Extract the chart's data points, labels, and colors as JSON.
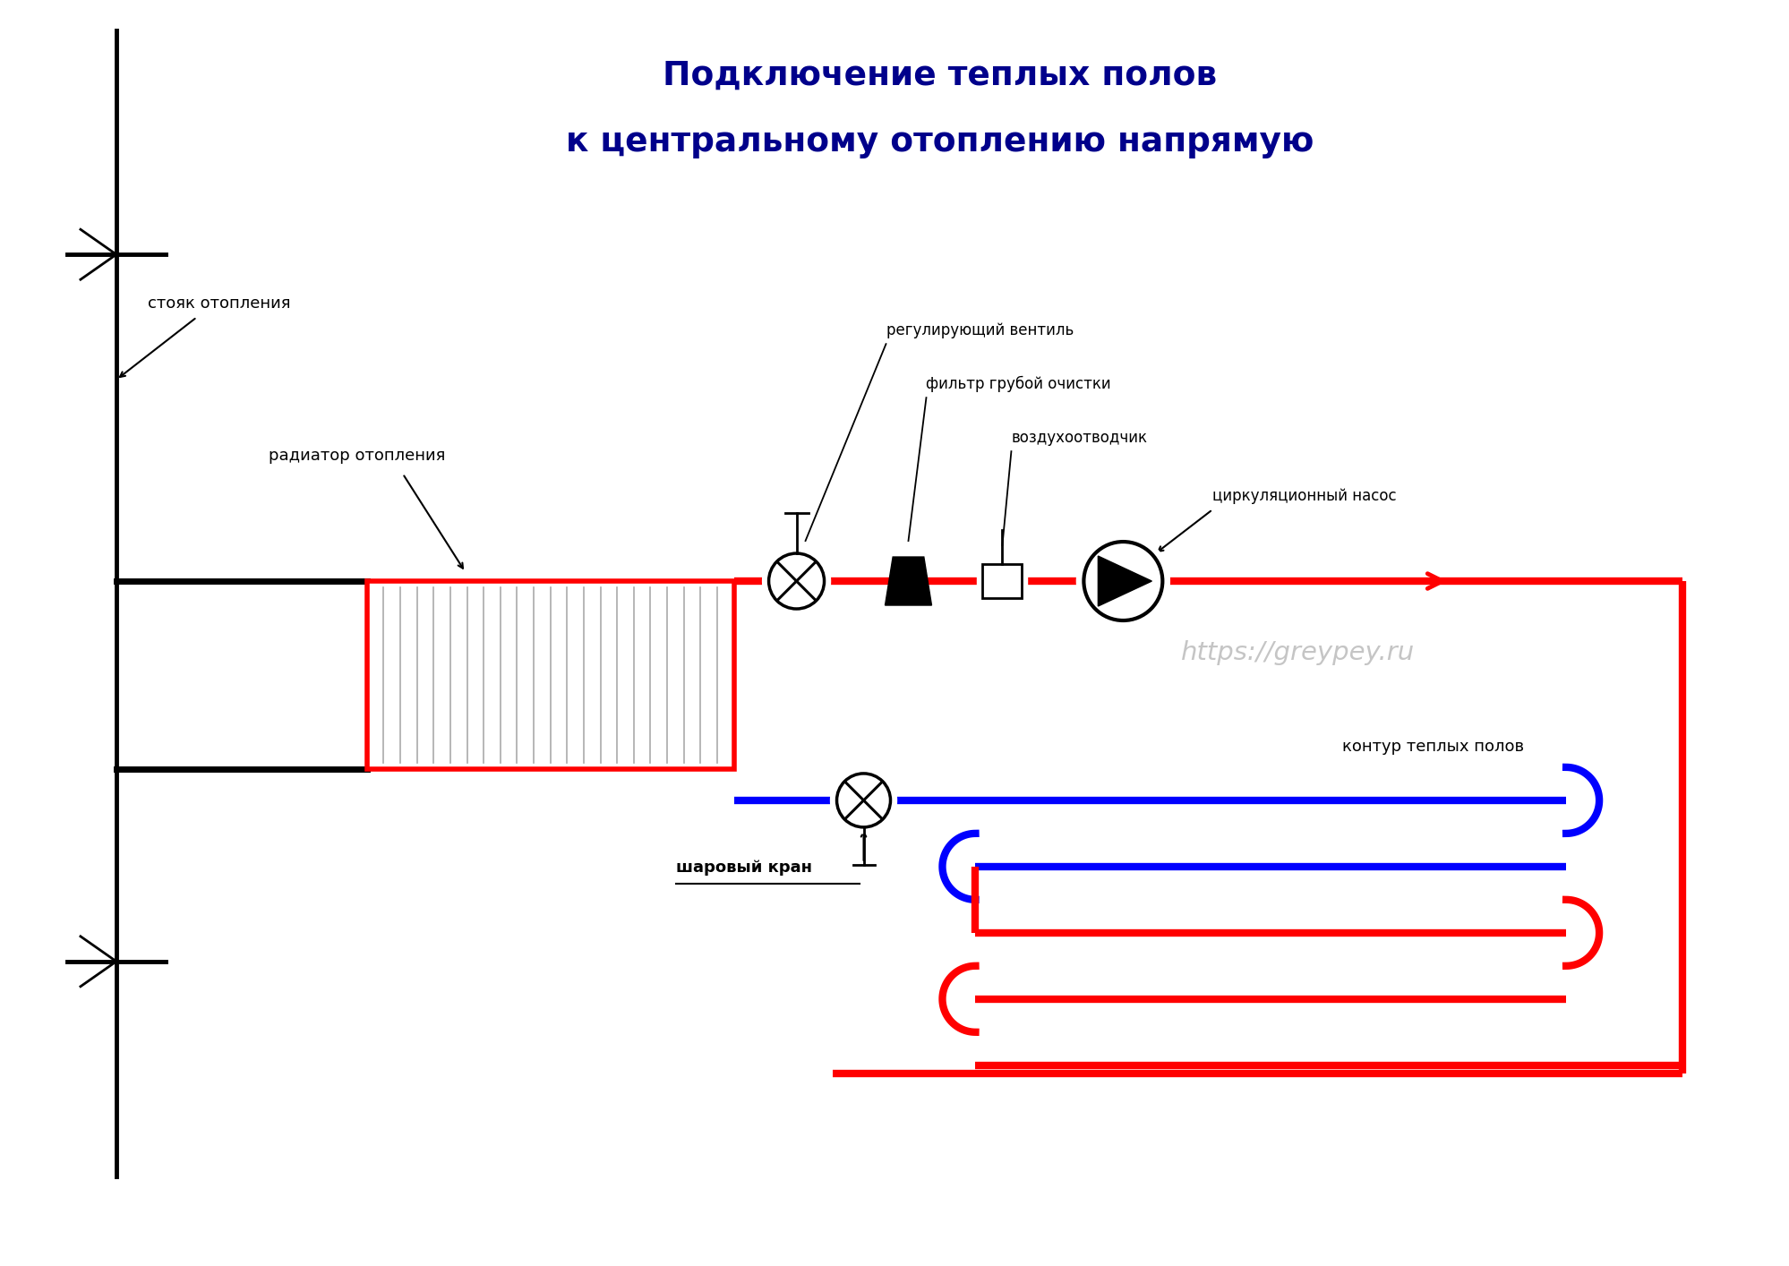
{
  "title_line1": "Подключение теплых полов",
  "title_line2": "к центральному отоплению напрямую",
  "title_color": "#00008B",
  "title_fontsize": 27,
  "label_stoyak": "стояк отопления",
  "label_radiator": "радиатор отопления",
  "label_reg_ventil": "регулирующий вентиль",
  "label_filtr": "фильтр грубой очистки",
  "label_vozduh": "воздухоотводчик",
  "label_nasos": "циркуляционный насос",
  "label_sharoviy": "шаровый кран",
  "label_kontur": "контур теплых полов",
  "label_greypey": "https://greypey.ru",
  "bg_color": "#FFFFFF",
  "red": "#FF0000",
  "blue": "#0000FF",
  "black": "#000000",
  "gray": "#BBBBBB",
  "fin_color": "#AAAAAA"
}
